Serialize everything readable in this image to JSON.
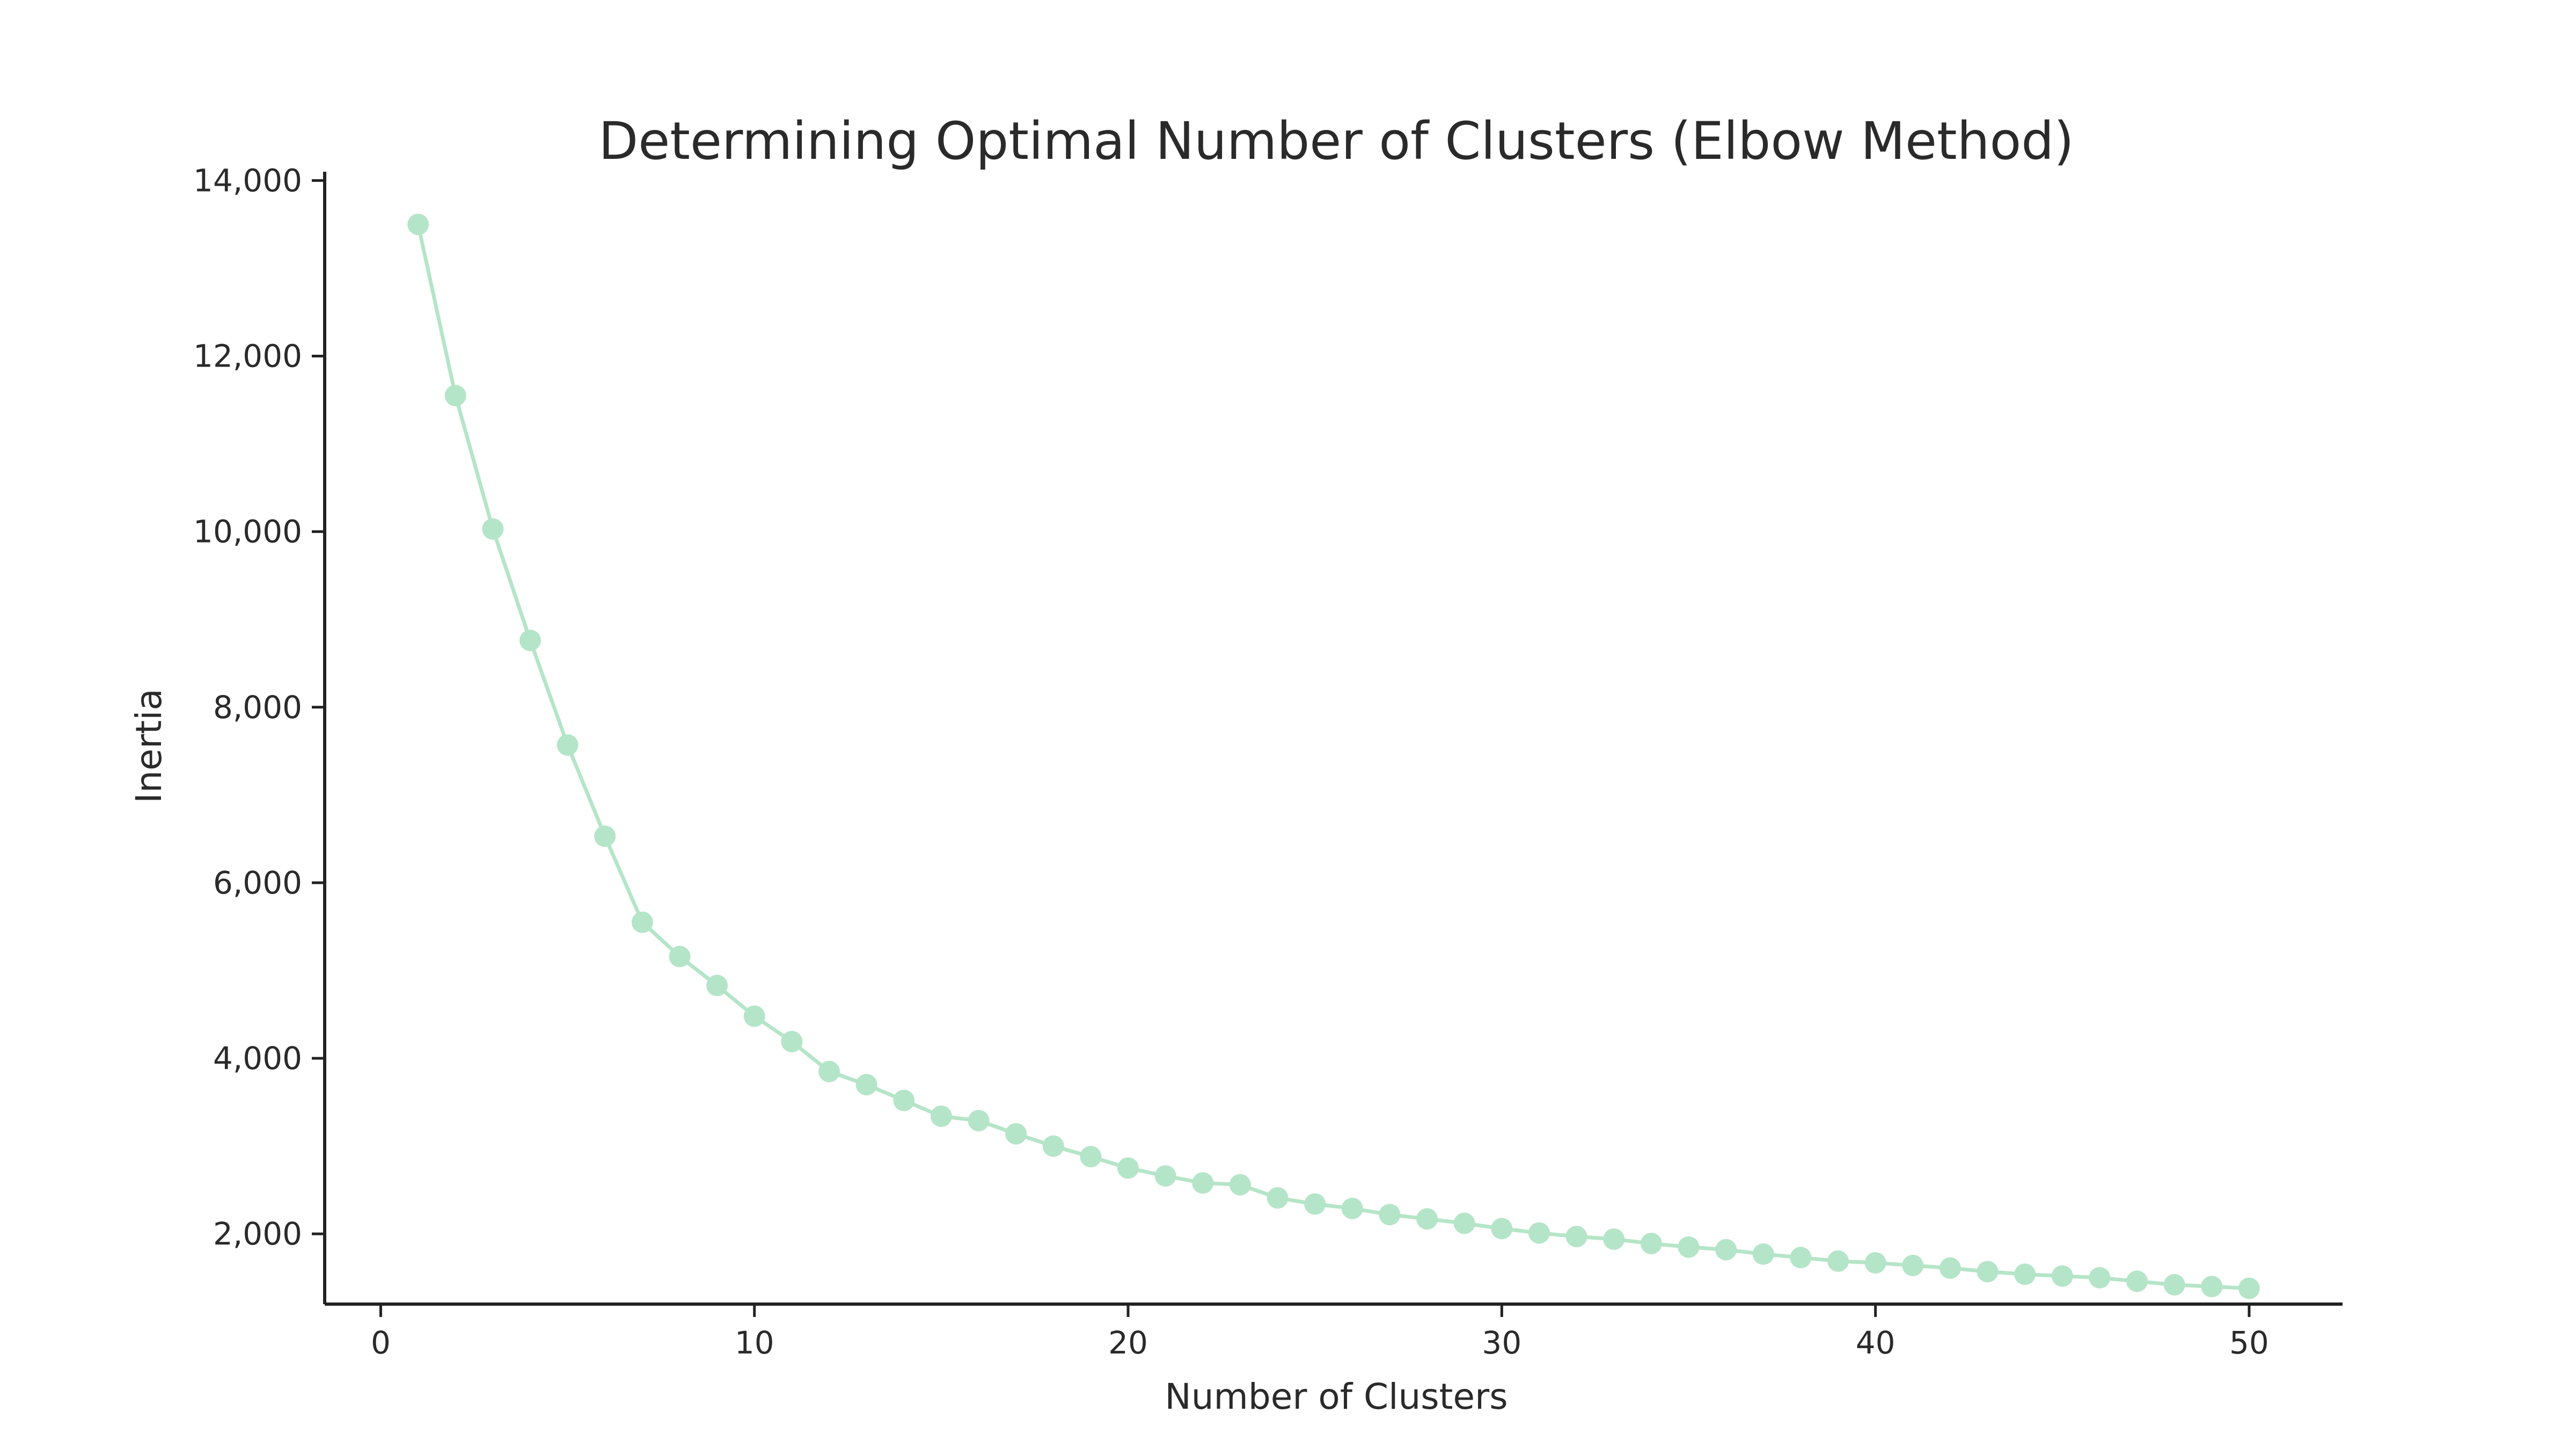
{
  "chart_data": {
    "type": "line",
    "title": "Determining Optimal Number of Clusters (Elbow Method)",
    "xlabel": "Number of Clusters",
    "ylabel": "Inertia",
    "xlim": [
      -1.5,
      52.5
    ],
    "ylim": [
      1200,
      14100
    ],
    "x_ticks": [
      0,
      10,
      20,
      30,
      40,
      50
    ],
    "x_tick_labels": [
      "0",
      "10",
      "20",
      "30",
      "40",
      "50"
    ],
    "y_ticks": [
      2000,
      4000,
      6000,
      8000,
      10000,
      12000,
      14000
    ],
    "y_tick_labels": [
      "2,000",
      "4,000",
      "6,000",
      "8,000",
      "10,000",
      "12,000",
      "14,000"
    ],
    "grid": false,
    "legend": "none",
    "series": [
      {
        "color": "#b5e5c8",
        "marker": "circle",
        "x": [
          1,
          2,
          3,
          4,
          5,
          6,
          7,
          8,
          9,
          10,
          11,
          12,
          13,
          14,
          15,
          16,
          17,
          18,
          19,
          20,
          21,
          22,
          23,
          24,
          25,
          26,
          27,
          28,
          29,
          30,
          31,
          32,
          33,
          34,
          35,
          36,
          37,
          38,
          39,
          40,
          41,
          42,
          43,
          44,
          45,
          46,
          47,
          48,
          49,
          50
        ],
        "y": [
          13500,
          11550,
          10030,
          8760,
          7570,
          6530,
          5550,
          5160,
          4830,
          4480,
          4190,
          3850,
          3700,
          3520,
          3340,
          3290,
          3140,
          3000,
          2880,
          2750,
          2660,
          2580,
          2560,
          2410,
          2340,
          2290,
          2220,
          2170,
          2120,
          2060,
          2010,
          1970,
          1940,
          1890,
          1850,
          1820,
          1770,
          1730,
          1690,
          1670,
          1640,
          1610,
          1570,
          1540,
          1520,
          1500,
          1460,
          1420,
          1400,
          1380
        ]
      }
    ]
  }
}
